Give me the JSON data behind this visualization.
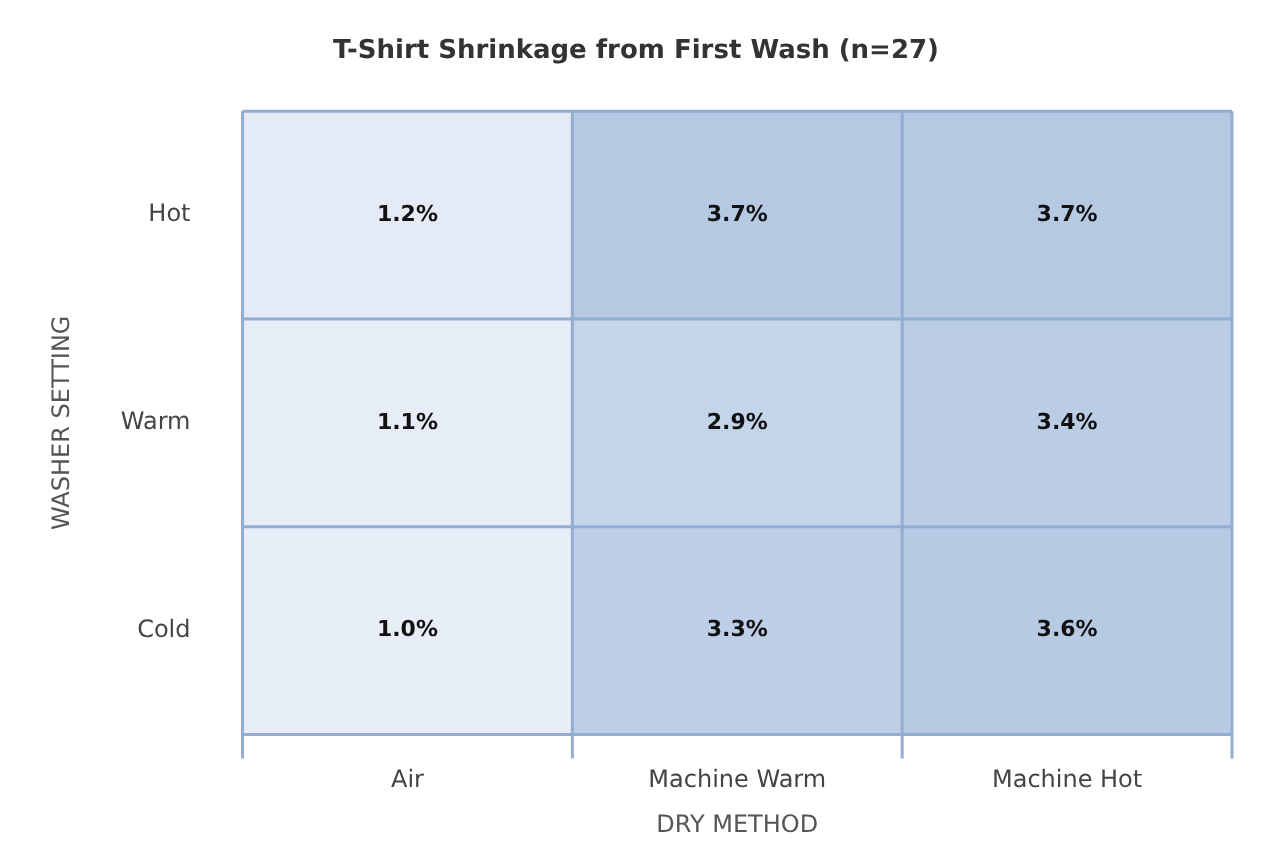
{
  "chart_data": {
    "type": "heatmap",
    "title": "T-Shirt Shrinkage from First Wash (n=27)",
    "xlabel": "DRY METHOD",
    "ylabel": "WASHER SETTING",
    "categories": [
      "Air",
      "Machine Warm",
      "Machine Hot"
    ],
    "y_categories": [
      "Hot",
      "Warm",
      "Cold"
    ],
    "cells": [
      [
        1.2,
        3.7,
        3.7
      ],
      [
        1.1,
        2.9,
        3.4
      ],
      [
        1.0,
        3.3,
        3.6
      ]
    ],
    "cell_labels": [
      [
        "1.2%",
        "3.7%",
        "3.7%"
      ],
      [
        "1.1%",
        "2.9%",
        "3.4%"
      ],
      [
        "1.0%",
        "3.3%",
        "3.6%"
      ]
    ]
  }
}
